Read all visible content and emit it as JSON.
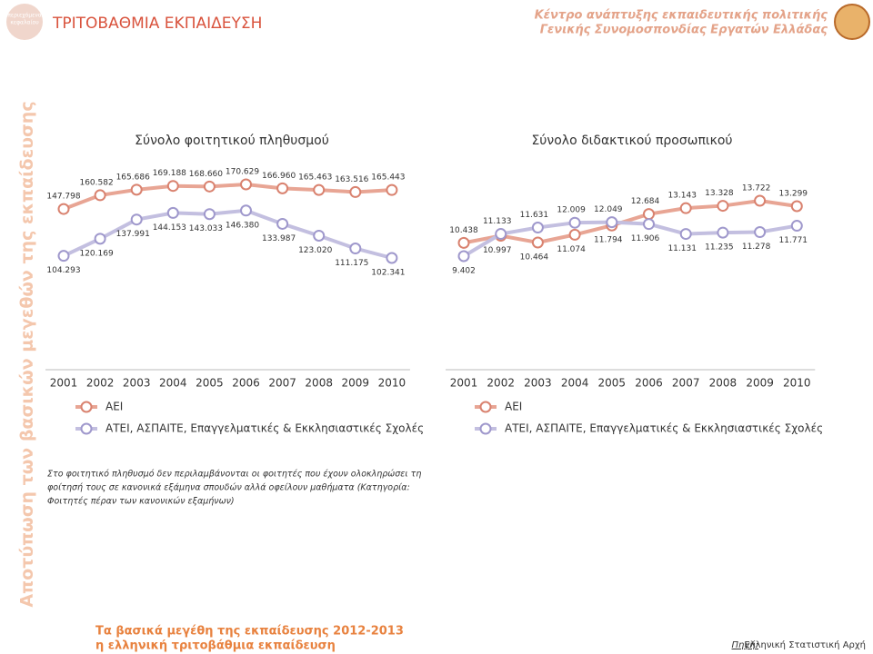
{
  "header": {
    "title": "ΤΡΙΤΟΒΑΘΜΙΑ ΕΚΠΑΙΔΕΥΣΗ",
    "back_button": [
      "περιεχόμενα",
      "κεφαλαίου"
    ],
    "organization": [
      "Κέντρο ανάπτυξης εκπαιδευτικής πολιτικής",
      "Γενικής Συνομοσπονδίας Εργατών Ελλάδας"
    ]
  },
  "sidebar_title": "Αποτύπωση των βασικών μεγεθών της εκπαίδευσης",
  "chart_data": [
    {
      "type": "line",
      "title": "Σύνολο φοιτητικού πληθυσμού",
      "categories": [
        "2001",
        "2002",
        "2003",
        "2004",
        "2005",
        "2006",
        "2007",
        "2008",
        "2009",
        "2010"
      ],
      "series": [
        {
          "name": "ΑΕΙ",
          "color": "#e8a594",
          "marker_color": "#d9826f",
          "values": [
            147798,
            160582,
            165686,
            169188,
            168660,
            170629,
            166960,
            165463,
            163516,
            165443
          ],
          "value_labels": [
            "147.798",
            "160.582",
            "165.686",
            "169.188",
            "168.660",
            "170.629",
            "166.960",
            "165.463",
            "163.516",
            "165.443"
          ]
        },
        {
          "name": "ΑΤΕΙ, ΑΣΠΑΙΤΕ, Επαγγελματικές & Εκκλησιαστικές Σχολές",
          "color": "#c3bfe0",
          "marker_color": "#9f98cc",
          "values": [
            104293,
            120169,
            137991,
            144153,
            143033,
            146380,
            133987,
            123020,
            111175,
            102341
          ],
          "value_labels": [
            "104.293",
            "120.169",
            "137.991",
            "144.153",
            "143.033",
            "146.380",
            "133.987",
            "123.020",
            "111.175",
            "102.341"
          ]
        }
      ]
    },
    {
      "type": "line",
      "title": "Σύνολο διδακτικού προσωπικού",
      "categories": [
        "2001",
        "2002",
        "2003",
        "2004",
        "2005",
        "2006",
        "2007",
        "2008",
        "2009",
        "2010"
      ],
      "series": [
        {
          "name": "ΑΕΙ",
          "color": "#e8a594",
          "marker_color": "#d9826f",
          "values": [
            10438,
            10997,
            10464,
            11074,
            11794,
            12684,
            13143,
            13328,
            13722,
            13299
          ],
          "value_labels": [
            "10.438",
            "10.997",
            "10.464",
            "11.074",
            "11.794",
            "12.684",
            "13.143",
            "13.328",
            "13.722",
            "13.299"
          ]
        },
        {
          "name": "ΑΤΕΙ, ΑΣΠΑΙΤΕ, Επαγγελματικές & Εκκλησιαστικές Σχολές",
          "color": "#c3bfe0",
          "marker_color": "#9f98cc",
          "values": [
            9402,
            11133,
            11631,
            12009,
            12049,
            11906,
            11131,
            11235,
            11278,
            11771
          ],
          "value_labels": [
            "9.402",
            "11.133",
            "11.631",
            "12.009",
            "12.049",
            "11.906",
            "11.131",
            "11.235",
            "11.278",
            "11.771"
          ]
        }
      ]
    }
  ],
  "note": [
    "Στο φοιτητικό πληθυσμό δεν περιλαμβάνονται οι φοιτητές που έχουν ολοκληρώσει τη",
    "φοίτησή τους σε κανονικά εξάμηνα σπουδών αλλά οφείλουν μαθήματα (Κατηγορία:",
    "Φοιτητές πέραν των κανονικών εξαμήνων)"
  ],
  "footer": {
    "title": [
      "Τα βασικά μεγέθη της εκπαίδευσης 2012-2013",
      "η ελληνική τριτοβάθμια εκπαίδευση"
    ],
    "source_label": "Πηγή:",
    "source": "Ελληνική Στατιστική Αρχή"
  }
}
